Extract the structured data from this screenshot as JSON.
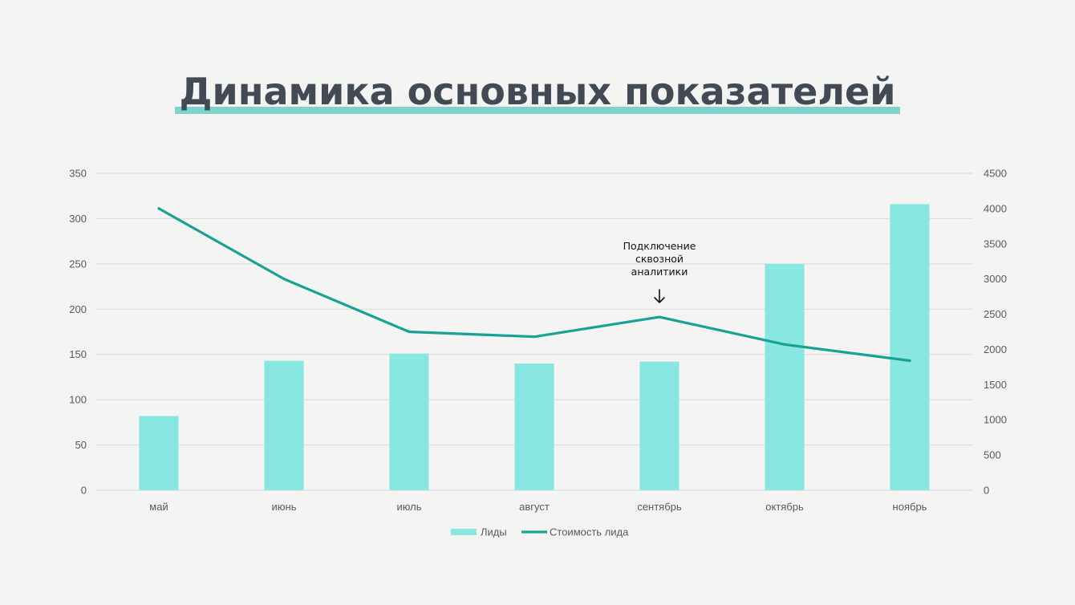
{
  "title": "Динамика основных показателей",
  "colors": {
    "bar": "#88e8e1",
    "line": "#16a393",
    "grid": "#d9d9d9",
    "title": "#424a56",
    "underline": "#7fd3cd"
  },
  "chart_data": {
    "type": "bar",
    "categories": [
      "май",
      "июнь",
      "июль",
      "август",
      "сентябрь",
      "октябрь",
      "ноябрь"
    ],
    "series": [
      {
        "name": "Лиды",
        "type": "bar",
        "axis": "left",
        "values": [
          82,
          143,
          151,
          140,
          142,
          250,
          316
        ]
      },
      {
        "name": "Стоимость лида",
        "type": "line",
        "axis": "right",
        "values": [
          4000,
          3000,
          2250,
          2180,
          2460,
          2070,
          1840
        ]
      }
    ],
    "y_left": {
      "min": 0,
      "max": 350,
      "step": 50,
      "ticks": [
        "0",
        "50",
        "100",
        "150",
        "200",
        "250",
        "300",
        "350"
      ]
    },
    "y_right": {
      "min": 0,
      "max": 4500,
      "step": 500,
      "ticks": [
        "0",
        "500",
        "1000",
        "1500",
        "2000",
        "2500",
        "3000",
        "3500",
        "4000",
        "4500"
      ]
    },
    "grid": true,
    "legend": {
      "position": "bottom",
      "items": [
        "Лиды",
        "Стоимость лида"
      ]
    },
    "annotation": {
      "category": "сентябрь",
      "lines": [
        "Подключение",
        "сквозной",
        "аналитики"
      ],
      "arrow": "down-arrow-icon"
    }
  }
}
